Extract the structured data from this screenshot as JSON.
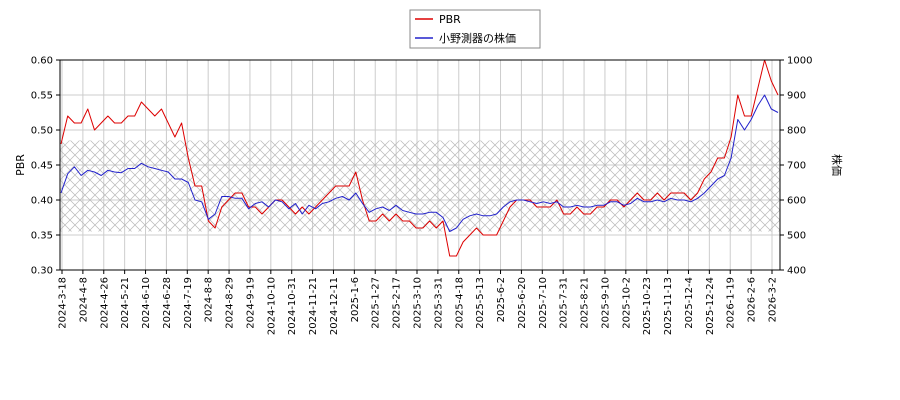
{
  "chart_data": {
    "type": "line",
    "title": "",
    "xlabel": "",
    "ylabel_left": "PBR",
    "ylabel_right": "株価",
    "ylim_left": [
      0.3,
      0.6
    ],
    "ylim_right": [
      400,
      1000
    ],
    "yticks_left": [
      "0.30",
      "0.35",
      "0.40",
      "0.45",
      "0.50",
      "0.55",
      "0.60"
    ],
    "yticks_right": [
      "400",
      "500",
      "600",
      "700",
      "800",
      "900",
      "1000"
    ],
    "x_ticks": [
      "2024-3-18",
      "2024-4-8",
      "2024-4-26",
      "2024-5-21",
      "2024-6-10",
      "2024-6-28",
      "2024-7-19",
      "2024-8-8",
      "2024-8-29",
      "2024-9-19",
      "2024-10-10",
      "2024-10-31",
      "2024-11-21",
      "2024-12-11",
      "2025-1-6",
      "2025-1-27",
      "2025-2-17",
      "2025-3-10",
      "2025-3-31",
      "2025-4-18",
      "2025-5-13",
      "2025-6-2",
      "2025-6-20",
      "2025-7-10",
      "2025-7-31",
      "2025-8-21",
      "2025-9-10",
      "2025-10-2",
      "2025-10-23",
      "2025-11-13",
      "2025-12-4",
      "2025-12-24",
      "2026-1-19",
      "2026-2-6",
      "2026-3-2"
    ],
    "grid": true,
    "legend_position": "top-center",
    "shaded_band": {
      "axis": "left",
      "from": 0.355,
      "to": 0.485
    },
    "series": [
      {
        "name": "PBR",
        "axis": "left",
        "color": "#dd0000",
        "values": [
          0.48,
          0.52,
          0.51,
          0.51,
          0.53,
          0.5,
          0.51,
          0.52,
          0.51,
          0.51,
          0.52,
          0.52,
          0.54,
          0.53,
          0.52,
          0.53,
          0.51,
          0.49,
          0.51,
          0.46,
          0.42,
          0.42,
          0.37,
          0.36,
          0.39,
          0.4,
          0.41,
          0.41,
          0.39,
          0.39,
          0.38,
          0.39,
          0.4,
          0.4,
          0.39,
          0.38,
          0.39,
          0.38,
          0.39,
          0.4,
          0.41,
          0.42,
          0.42,
          0.42,
          0.44,
          0.4,
          0.37,
          0.37,
          0.38,
          0.37,
          0.38,
          0.37,
          0.37,
          0.36,
          0.36,
          0.37,
          0.36,
          0.37,
          0.32,
          0.32,
          0.34,
          0.35,
          0.36,
          0.35,
          0.35,
          0.35,
          0.37,
          0.39,
          0.4,
          0.4,
          0.4,
          0.39,
          0.39,
          0.39,
          0.4,
          0.38,
          0.38,
          0.39,
          0.38,
          0.38,
          0.39,
          0.39,
          0.4,
          0.4,
          0.39,
          0.4,
          0.41,
          0.4,
          0.4,
          0.41,
          0.4,
          0.41,
          0.41,
          0.41,
          0.4,
          0.41,
          0.43,
          0.44,
          0.46,
          0.46,
          0.49,
          0.55,
          0.52,
          0.52,
          0.56,
          0.6,
          0.57,
          0.55
        ]
      },
      {
        "name": "小野測器の株価",
        "axis": "right",
        "color": "#2222cc",
        "values": [
          620,
          675,
          695,
          670,
          685,
          680,
          670,
          685,
          680,
          678,
          690,
          690,
          705,
          695,
          690,
          685,
          680,
          660,
          660,
          650,
          600,
          595,
          545,
          560,
          610,
          610,
          605,
          605,
          575,
          590,
          595,
          580,
          600,
          595,
          575,
          590,
          560,
          585,
          575,
          590,
          595,
          605,
          610,
          600,
          620,
          590,
          565,
          575,
          580,
          570,
          585,
          570,
          565,
          560,
          560,
          565,
          565,
          550,
          510,
          520,
          545,
          555,
          560,
          555,
          555,
          560,
          580,
          595,
          600,
          600,
          595,
          590,
          595,
          590,
          595,
          580,
          580,
          585,
          580,
          580,
          585,
          585,
          595,
          595,
          585,
          590,
          605,
          595,
          595,
          600,
          595,
          605,
          600,
          600,
          595,
          605,
          620,
          640,
          660,
          670,
          720,
          830,
          800,
          830,
          870,
          900,
          860,
          850
        ]
      }
    ]
  }
}
